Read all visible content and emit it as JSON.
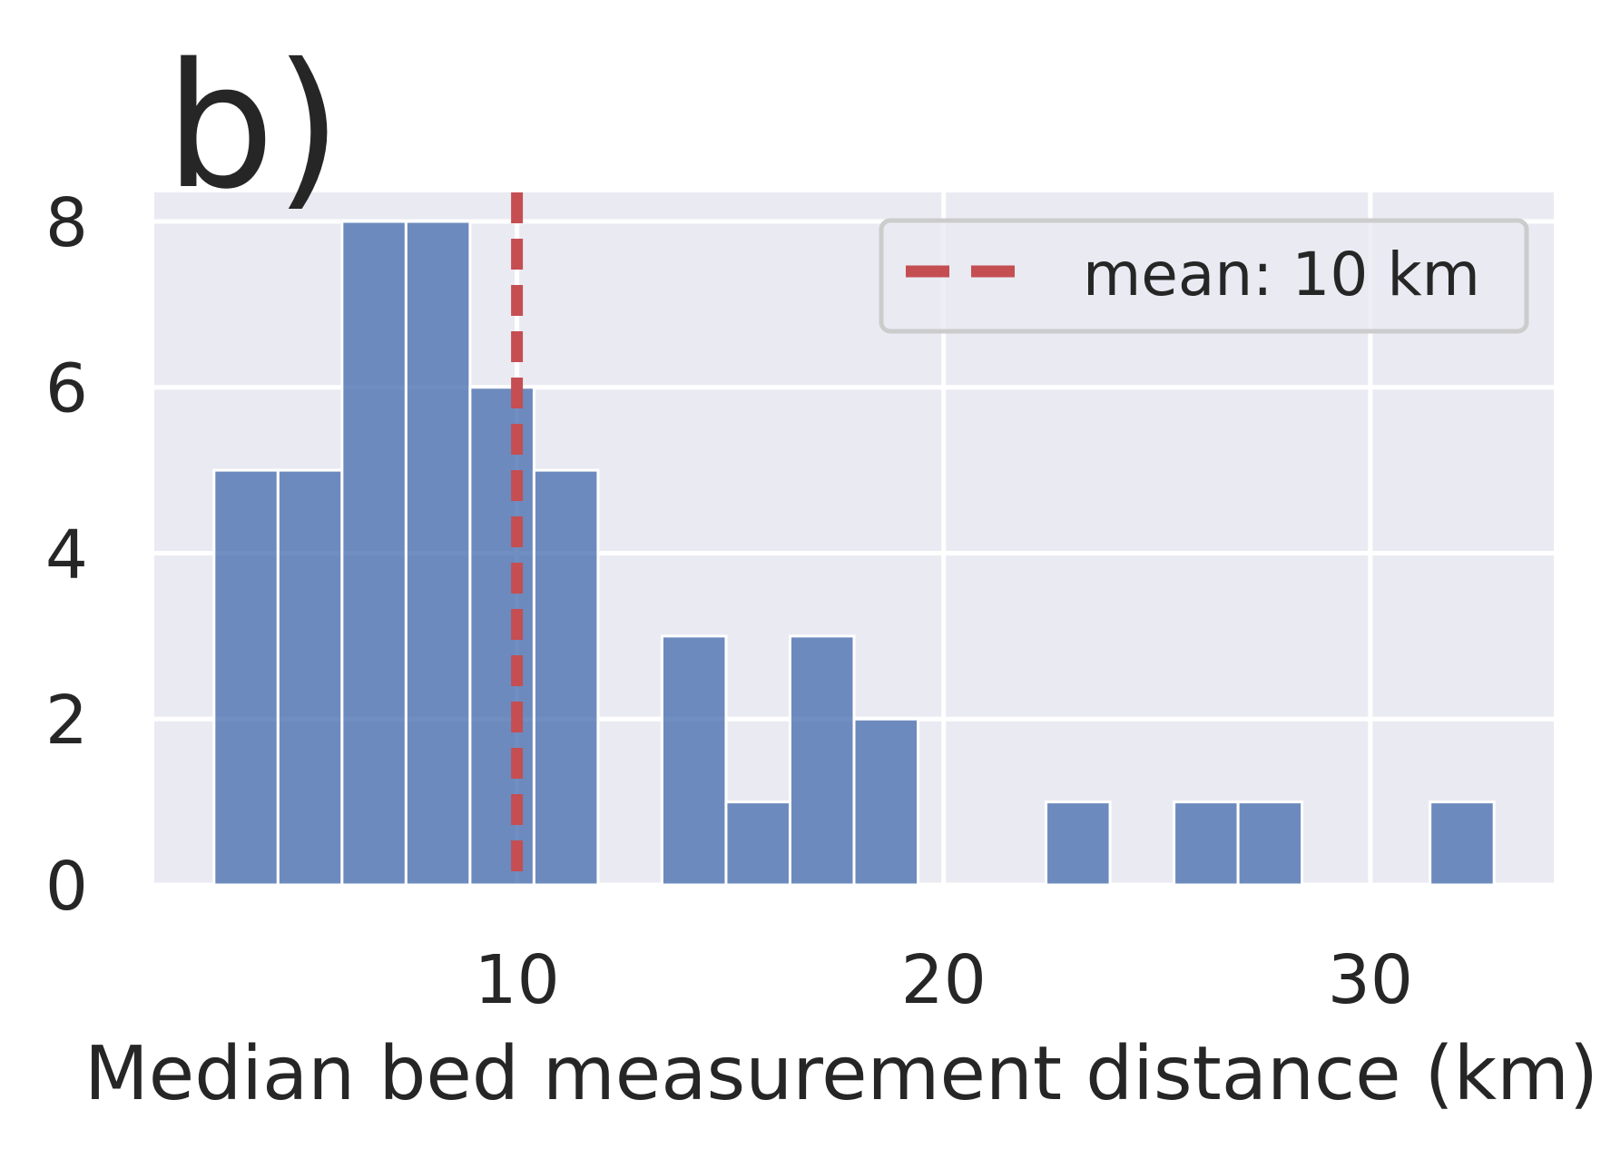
{
  "panel_label": "b)",
  "colors": {
    "plot_background": "#eaeaf2",
    "grid": "#ffffff",
    "bar_fill": "#4c72b0",
    "bar_edge": "#ffffff",
    "mean_line": "#c44e52",
    "text": "#262626",
    "legend_frame": "#cccccc"
  },
  "chart_data": {
    "type": "bar",
    "subtype": "histogram",
    "xlabel": "Median bed measurement distance (km)",
    "ylabel": "",
    "xlim": [
      1.5,
      34.3
    ],
    "ylim": [
      0,
      8.35
    ],
    "xticks": [
      10,
      20,
      30
    ],
    "yticks": [
      0,
      2,
      4,
      6,
      8
    ],
    "grid": true,
    "bin_width": 1.5,
    "bins": [
      {
        "x_start": 2.9,
        "x_end": 4.4,
        "count": 5
      },
      {
        "x_start": 4.4,
        "x_end": 5.9,
        "count": 5
      },
      {
        "x_start": 5.9,
        "x_end": 7.4,
        "count": 8
      },
      {
        "x_start": 7.4,
        "x_end": 8.9,
        "count": 8
      },
      {
        "x_start": 8.9,
        "x_end": 10.4,
        "count": 6
      },
      {
        "x_start": 10.4,
        "x_end": 11.9,
        "count": 5
      },
      {
        "x_start": 11.9,
        "x_end": 13.4,
        "count": 0
      },
      {
        "x_start": 13.4,
        "x_end": 14.9,
        "count": 3
      },
      {
        "x_start": 14.9,
        "x_end": 16.4,
        "count": 1
      },
      {
        "x_start": 16.4,
        "x_end": 17.9,
        "count": 3
      },
      {
        "x_start": 17.9,
        "x_end": 19.4,
        "count": 2
      },
      {
        "x_start": 19.4,
        "x_end": 20.9,
        "count": 0
      },
      {
        "x_start": 20.9,
        "x_end": 22.4,
        "count": 0
      },
      {
        "x_start": 22.4,
        "x_end": 23.9,
        "count": 1
      },
      {
        "x_start": 23.9,
        "x_end": 25.4,
        "count": 0
      },
      {
        "x_start": 25.4,
        "x_end": 26.9,
        "count": 1
      },
      {
        "x_start": 26.9,
        "x_end": 28.4,
        "count": 1
      },
      {
        "x_start": 28.4,
        "x_end": 29.9,
        "count": 0
      },
      {
        "x_start": 29.9,
        "x_end": 31.4,
        "count": 0
      },
      {
        "x_start": 31.4,
        "x_end": 32.9,
        "count": 1
      }
    ],
    "mean_line": {
      "x": 10,
      "style": "dashed",
      "label": "mean: 10 km"
    },
    "legend": {
      "placement": "top-right",
      "entries": [
        "mean: 10 km"
      ]
    }
  }
}
